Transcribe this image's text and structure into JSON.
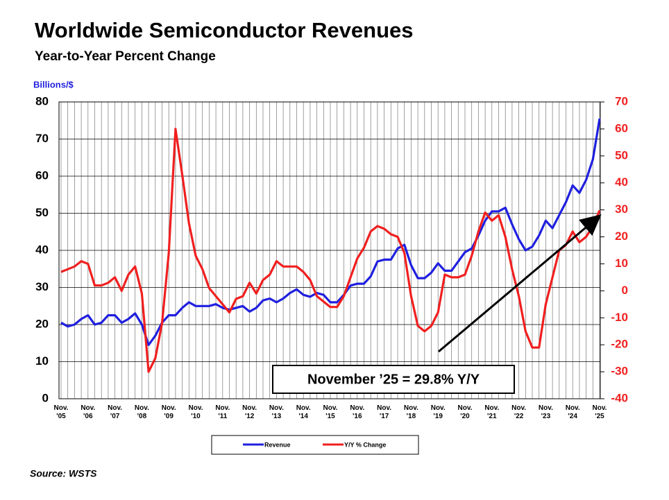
{
  "chart_data": {
    "type": "line",
    "title": "Worldwide Semiconductor Revenues",
    "subtitle": "Year-to-Year Percent Change",
    "y_label": "Billions/$",
    "annotation": "November ’25 = 29.8% Y/Y",
    "source": "Source: WSTS",
    "categories": [
      "Nov. '05",
      null,
      null,
      null,
      "Nov. '06",
      null,
      null,
      null,
      "Nov. '07",
      null,
      null,
      null,
      "Nov. '08",
      null,
      null,
      null,
      "Nov. '09",
      null,
      null,
      null,
      "Nov. '10",
      null,
      null,
      null,
      "Nov. '11",
      null,
      null,
      null,
      "Nov. '12",
      null,
      null,
      null,
      "Nov. '13",
      null,
      null,
      null,
      "Nov. '14",
      null,
      null,
      null,
      "Nov. '15",
      null,
      null,
      null,
      "Nov. '16",
      null,
      null,
      null,
      "Nov. '17",
      null,
      null,
      null,
      "Nov. '18",
      null,
      null,
      null,
      "Nov. '19",
      null,
      null,
      null,
      "Nov. '20",
      null,
      null,
      null,
      "Nov. '21",
      null,
      null,
      null,
      "Nov. '22",
      null,
      null,
      null,
      "Nov. '23",
      null,
      null,
      null,
      "Nov. '24",
      null,
      null,
      null,
      "Nov. '25"
    ],
    "series": [
      {
        "name": "Revenue",
        "color": "#1f1fe0",
        "axis": "y",
        "values": [
          20.5,
          19.5,
          20,
          21.5,
          22.5,
          20,
          20.5,
          22.5,
          22.5,
          20.5,
          21.5,
          23,
          20,
          14.5,
          17,
          20.5,
          22.5,
          22.5,
          24.5,
          26,
          25,
          25,
          25,
          25.5,
          24.5,
          24,
          24.5,
          25,
          23.5,
          24.5,
          26.5,
          27,
          26,
          27,
          28.5,
          29.5,
          28,
          27.5,
          28.5,
          28,
          26,
          26,
          28,
          30.5,
          31,
          31,
          33,
          37,
          37.5,
          37.5,
          40.5,
          41.5,
          36,
          32.5,
          32.5,
          34,
          36.5,
          34.5,
          34.5,
          37,
          39.5,
          40.5,
          44,
          48,
          50.5,
          50.5,
          51.5,
          47,
          43,
          40,
          41,
          44,
          48,
          46,
          49.5,
          53,
          57.5,
          55.5,
          59,
          64.5,
          75.5
        ]
      },
      {
        "name": "Y/Y % Change",
        "color": "#f01f1f",
        "axis": "y2",
        "values": [
          7,
          8,
          9,
          11,
          10,
          2,
          2,
          3,
          5,
          0,
          6,
          9,
          -1,
          -30,
          -25,
          -12,
          14,
          60,
          43,
          25,
          13,
          8,
          1,
          -2,
          -5,
          -8,
          -3,
          -2,
          3,
          -1,
          4,
          6,
          11,
          9,
          9,
          9,
          7,
          4,
          -2,
          -4,
          -6,
          -6,
          -2,
          5,
          12,
          16,
          22,
          24,
          23,
          21,
          20,
          14,
          -2,
          -13,
          -15,
          -13,
          -8,
          6,
          5,
          5,
          6,
          13,
          22,
          29,
          26,
          28,
          20,
          8,
          -2,
          -15,
          -21,
          -21,
          -5,
          5,
          15,
          17,
          22,
          18,
          20,
          24,
          29.8
        ]
      }
    ],
    "ylim": [
      0,
      80
    ],
    "yticks": [
      0,
      10,
      20,
      30,
      40,
      50,
      60,
      70,
      80
    ],
    "y2lim": [
      -40,
      70
    ],
    "y2ticks": [
      -40,
      -30,
      -20,
      -10,
      0,
      10,
      20,
      30,
      40,
      50,
      60,
      70
    ],
    "grid": true
  }
}
